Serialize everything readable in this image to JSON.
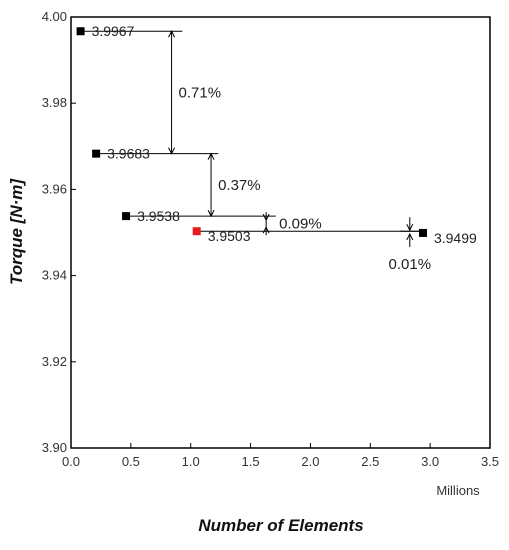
{
  "chart_data": {
    "type": "scatter",
    "xlabel": "Number of Elements",
    "ylabel": "Torque [N·m]",
    "x_units": "Millions",
    "xlim": [
      0.0,
      3.5
    ],
    "ylim": [
      3.9,
      4.0
    ],
    "x_ticks": [
      "0.0",
      "0.5",
      "1.0",
      "1.5",
      "2.0",
      "2.5",
      "3.0",
      "3.5"
    ],
    "y_ticks": [
      "3.90",
      "3.92",
      "3.94",
      "3.96",
      "3.98",
      "4.00"
    ],
    "grid": false,
    "points": [
      {
        "x": 0.08,
        "y": 3.9967,
        "label": "3.9967",
        "color": "#000000"
      },
      {
        "x": 0.21,
        "y": 3.9683,
        "label": "3.9683",
        "color": "#000000"
      },
      {
        "x": 0.46,
        "y": 3.9538,
        "label": "3.9538",
        "color": "#000000"
      },
      {
        "x": 1.05,
        "y": 3.9503,
        "label": "3.9503",
        "color": "#e8191c"
      },
      {
        "x": 2.94,
        "y": 3.9499,
        "label": "3.9499",
        "color": "#000000"
      }
    ],
    "annotations": [
      {
        "text": "0.71%",
        "from": 3.9967,
        "to": 3.9683,
        "x": 0.84
      },
      {
        "text": "0.37%",
        "from": 3.9683,
        "to": 3.9538,
        "x": 1.17
      },
      {
        "text": "0.09%",
        "from": 3.9538,
        "to": 3.9503,
        "x": 1.63
      },
      {
        "text": "0.01%",
        "from": 3.9503,
        "to": 3.9499,
        "x": 2.83
      }
    ]
  }
}
